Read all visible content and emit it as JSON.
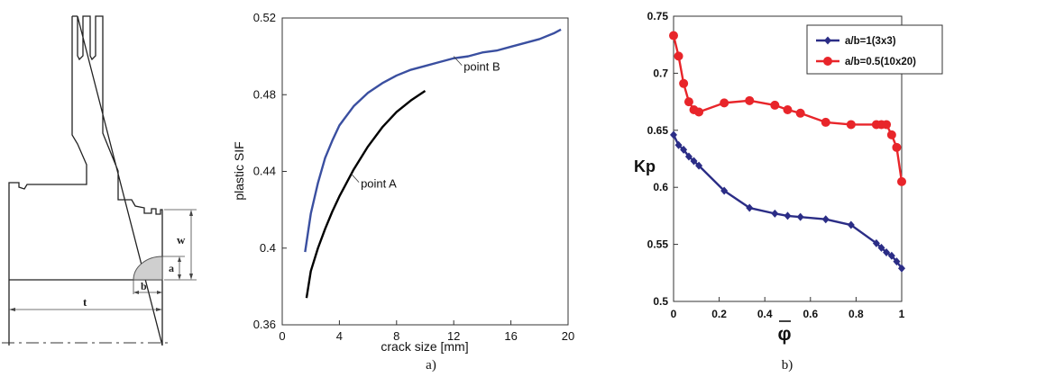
{
  "diagram": {
    "labels": {
      "w": "w",
      "a": "a",
      "b": "b",
      "t": "t"
    }
  },
  "chart_data": [
    {
      "type": "line",
      "caption": "a)",
      "xlabel": "crack size [mm]",
      "ylabel": "plastic SIF",
      "xlim": [
        0,
        20
      ],
      "ylim": [
        0.36,
        0.52
      ],
      "xticks": [
        0,
        4,
        8,
        12,
        16,
        20
      ],
      "yticks": [
        0.36,
        0.4,
        0.44,
        0.48,
        0.52
      ],
      "ytick_labels": [
        "0.36",
        "0.4",
        "0.44",
        "0.48",
        "0.52"
      ],
      "grid": false,
      "series": [
        {
          "color": "#3a4fa0",
          "annotation": {
            "text": "point B",
            "at": [
              12.0,
              0.5
            ]
          },
          "x": [
            1.6,
            2.0,
            2.5,
            3.0,
            3.5,
            4.0,
            5.0,
            6.0,
            7.0,
            8.0,
            9.0,
            10.0,
            11.0,
            12.0,
            13.0,
            14.0,
            15.0,
            16.0,
            17.0,
            18.0,
            19.0,
            19.5
          ],
          "y": [
            0.398,
            0.418,
            0.434,
            0.447,
            0.456,
            0.464,
            0.474,
            0.481,
            0.486,
            0.49,
            0.493,
            0.495,
            0.497,
            0.499,
            0.5,
            0.502,
            0.503,
            0.505,
            0.507,
            0.509,
            0.512,
            0.514
          ]
        },
        {
          "color": "#000000",
          "annotation": {
            "text": "point A",
            "at": [
              4.8,
              0.439
            ]
          },
          "x": [
            1.7,
            2.0,
            2.5,
            3.0,
            3.5,
            4.0,
            5.0,
            6.0,
            7.0,
            8.0,
            9.0,
            10.0
          ],
          "y": [
            0.374,
            0.388,
            0.4,
            0.41,
            0.419,
            0.427,
            0.441,
            0.453,
            0.463,
            0.471,
            0.477,
            0.482
          ]
        }
      ]
    },
    {
      "type": "line",
      "caption": "b)",
      "xlabel": "φ",
      "ylabel": "Kp",
      "xlim": [
        0,
        1
      ],
      "ylim": [
        0.5,
        0.75
      ],
      "xticks": [
        0,
        0.2,
        0.4,
        0.6,
        0.8,
        1
      ],
      "yticks": [
        0.5,
        0.55,
        0.6,
        0.65,
        0.7,
        0.75
      ],
      "grid": false,
      "legend": "top-right",
      "series": [
        {
          "name": "a/b=1(3x3)",
          "color": "#2b2d86",
          "marker": "diamond",
          "x": [
            0,
            0.022,
            0.044,
            0.067,
            0.089,
            0.111,
            0.222,
            0.333,
            0.444,
            0.5,
            0.556,
            0.667,
            0.778,
            0.889,
            0.911,
            0.933,
            0.956,
            0.978,
            1.0
          ],
          "y": [
            0.646,
            0.637,
            0.633,
            0.627,
            0.623,
            0.619,
            0.597,
            0.582,
            0.577,
            0.575,
            0.574,
            0.572,
            0.567,
            0.551,
            0.547,
            0.543,
            0.54,
            0.535,
            0.529
          ]
        },
        {
          "name": "a/b=0.5(10x20)",
          "color": "#e8252a",
          "marker": "circle",
          "x": [
            0,
            0.022,
            0.044,
            0.067,
            0.089,
            0.111,
            0.222,
            0.333,
            0.444,
            0.5,
            0.556,
            0.667,
            0.778,
            0.889,
            0.911,
            0.933,
            0.956,
            0.978,
            1.0
          ],
          "y": [
            0.733,
            0.715,
            0.691,
            0.675,
            0.668,
            0.666,
            0.674,
            0.676,
            0.672,
            0.668,
            0.665,
            0.657,
            0.655,
            0.655,
            0.655,
            0.655,
            0.646,
            0.635,
            0.605
          ]
        }
      ]
    }
  ]
}
